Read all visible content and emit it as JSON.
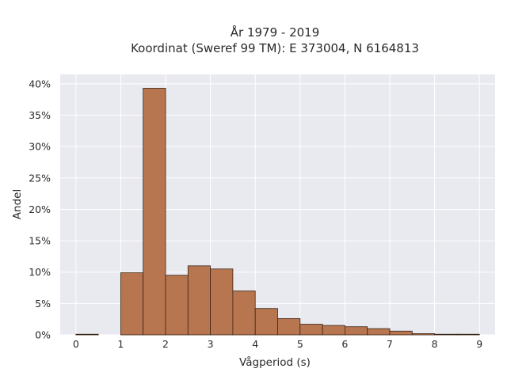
{
  "chart_data": {
    "type": "bar",
    "title_line1": "År 1979 - 2019",
    "title_line2": "Koordinat (Sweref 99 TM): E 373004, N 6164813",
    "xlabel": "Vågperiod (s)",
    "ylabel": "Andel",
    "xlim": [
      -0.35,
      9.35
    ],
    "ylim": [
      0,
      0.415
    ],
    "x_ticks": [
      0,
      1,
      2,
      3,
      4,
      5,
      6,
      7,
      8,
      9
    ],
    "x_tick_labels": [
      "0",
      "1",
      "2",
      "3",
      "4",
      "5",
      "6",
      "7",
      "8",
      "9"
    ],
    "y_ticks": [
      0,
      0.05,
      0.1,
      0.15,
      0.2,
      0.25,
      0.3,
      0.35,
      0.4
    ],
    "y_tick_labels": [
      "0%",
      "5%",
      "10%",
      "15%",
      "20%",
      "25%",
      "30%",
      "35%",
      "40%"
    ],
    "bin_width": 0.5,
    "bins": [
      {
        "start": 0.0,
        "value": 0.001
      },
      {
        "start": 0.5,
        "value": 0.0
      },
      {
        "start": 1.0,
        "value": 0.099
      },
      {
        "start": 1.5,
        "value": 0.393
      },
      {
        "start": 2.0,
        "value": 0.095
      },
      {
        "start": 2.5,
        "value": 0.11
      },
      {
        "start": 3.0,
        "value": 0.105
      },
      {
        "start": 3.5,
        "value": 0.07
      },
      {
        "start": 4.0,
        "value": 0.042
      },
      {
        "start": 4.5,
        "value": 0.026
      },
      {
        "start": 5.0,
        "value": 0.017
      },
      {
        "start": 5.5,
        "value": 0.015
      },
      {
        "start": 6.0,
        "value": 0.013
      },
      {
        "start": 6.5,
        "value": 0.01
      },
      {
        "start": 7.0,
        "value": 0.006
      },
      {
        "start": 7.5,
        "value": 0.002
      },
      {
        "start": 8.0,
        "value": 0.001
      },
      {
        "start": 8.5,
        "value": 0.001
      }
    ],
    "grid": true,
    "bar_color": "#b87650",
    "bar_edge_color": "#3a2616",
    "plot_bg": "#e9e9f0",
    "grid_color": "#ffffff"
  }
}
